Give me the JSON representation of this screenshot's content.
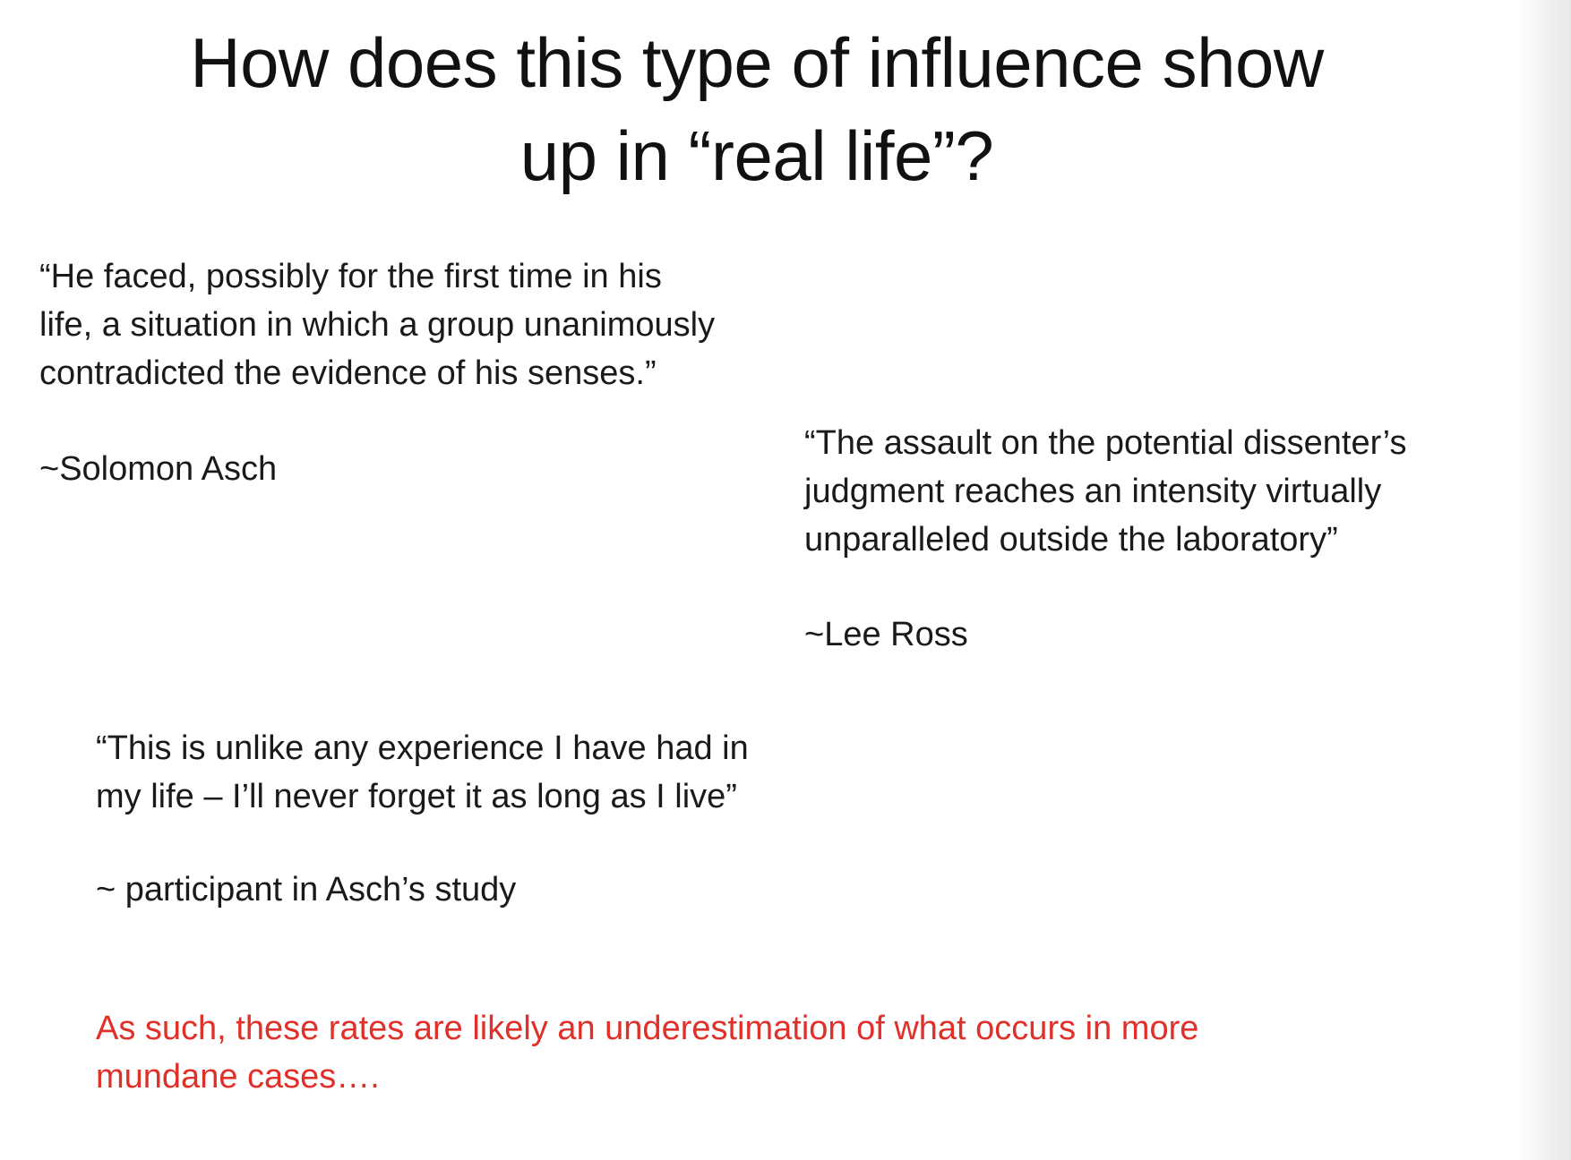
{
  "slide": {
    "title_lines": [
      "How does this type of influence show",
      "up in “real life”?"
    ],
    "quotes": [
      {
        "lines": [
          "“He faced, possibly for the first time in his",
          "life, a situation in which a group unanimously",
          "contradicted the evidence of his senses.”"
        ],
        "attribution": "~Solomon Asch"
      },
      {
        "lines": [
          "“The assault on the potential dissenter’s",
          "judgment reaches an intensity virtually",
          "unparalleled outside the laboratory”"
        ],
        "attribution": "~Lee Ross"
      },
      {
        "lines": [
          "“This is unlike any experience I have had in",
          "my life – I’ll never forget it as long as I live”"
        ],
        "attribution": "~ participant in Asch’s study"
      }
    ],
    "conclusion_lines": [
      "As such, these rates are likely an underestimation of what occurs in more",
      "mundane  cases…."
    ],
    "colors": {
      "text": "#111111",
      "conclusion": "#e0302a",
      "background": "#ffffff"
    }
  }
}
